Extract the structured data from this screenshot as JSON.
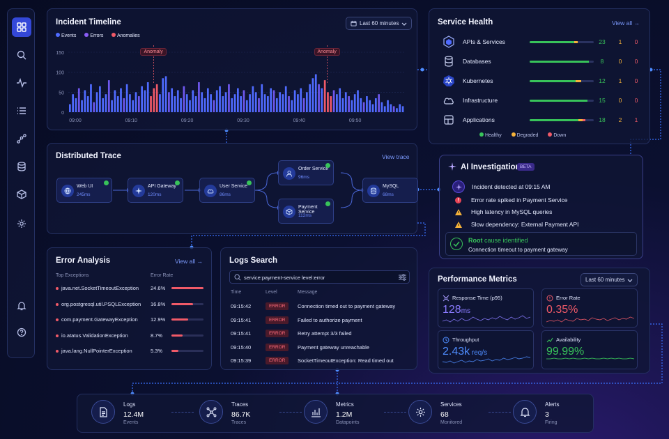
{
  "sidebar": {
    "items": [
      "dashboard-icon",
      "search-icon",
      "activity-icon",
      "list-icon",
      "graph-icon",
      "database-icon",
      "cube-icon",
      "settings-icon"
    ],
    "bottom": [
      "bell-icon",
      "help-icon"
    ]
  },
  "timeline": {
    "title": "Incident Timeline",
    "legend": [
      {
        "label": "Events",
        "color": "#4f6bff"
      },
      {
        "label": "Errors",
        "color": "#8a5cf6"
      },
      {
        "label": "Anomalies",
        "color": "#f05a68"
      }
    ],
    "range_label": "Last 60 minutes",
    "anomaly_label": "Anomaly"
  },
  "chart_data": {
    "type": "bar",
    "title": "Incident Timeline",
    "x_ticks": [
      "09:00",
      "09:10",
      "09:20",
      "09:30",
      "09:40",
      "09:50"
    ],
    "y_ticks": [
      "150",
      "100",
      "50",
      "0"
    ],
    "ylim": [
      0,
      150
    ],
    "grid": true,
    "anomalies": [
      "09:14",
      "09:45"
    ],
    "values": [
      20,
      45,
      35,
      60,
      30,
      55,
      40,
      70,
      25,
      50,
      65,
      35,
      45,
      80,
      30,
      55,
      40,
      60,
      35,
      70,
      45,
      30,
      50,
      40,
      65,
      55,
      75,
      40,
      60,
      70,
      45,
      85,
      90,
      50,
      60,
      40,
      55,
      35,
      65,
      45,
      30,
      55,
      40,
      75,
      50,
      35,
      60,
      45,
      30,
      55,
      65,
      40,
      50,
      70,
      35,
      45,
      60,
      40,
      55,
      30,
      45,
      65,
      50,
      35,
      70,
      45,
      40,
      60,
      55,
      35,
      50,
      45,
      65,
      40,
      30,
      55,
      45,
      60,
      35,
      50,
      70,
      85,
      95,
      70,
      60,
      80,
      50,
      40,
      55,
      45,
      60,
      35,
      50,
      40,
      30,
      45,
      55,
      35,
      25,
      40,
      30,
      20,
      35,
      45,
      25,
      15,
      30,
      20,
      15,
      10,
      20,
      15
    ]
  },
  "health": {
    "title": "Service Health",
    "view_all": "View all",
    "rows": [
      {
        "name": "APIs & Services",
        "icon": "hexagon-icon",
        "green": 0.7,
        "amber": 0.05,
        "red": 0.0,
        "ok": "23",
        "warn": "1",
        "down": "0"
      },
      {
        "name": "Databases",
        "icon": "database-icon",
        "green": 0.92,
        "amber": 0.0,
        "red": 0.0,
        "ok": "8",
        "warn": "0",
        "down": "0"
      },
      {
        "name": "Kubernetes",
        "icon": "kubernetes-icon",
        "green": 0.72,
        "amber": 0.08,
        "red": 0.0,
        "ok": "12",
        "warn": "1",
        "down": "0"
      },
      {
        "name": "Infrastructure",
        "icon": "cloud-icon",
        "green": 0.9,
        "amber": 0.0,
        "red": 0.0,
        "ok": "15",
        "warn": "0",
        "down": "0"
      },
      {
        "name": "Applications",
        "icon": "layers-icon",
        "green": 0.76,
        "amber": 0.07,
        "red": 0.04,
        "ok": "18",
        "warn": "2",
        "down": "1"
      }
    ],
    "legend": [
      {
        "label": "Healthy",
        "color": "#38c35a"
      },
      {
        "label": "Degraded",
        "color": "#f5b23a"
      },
      {
        "label": "Down",
        "color": "#f05a68"
      }
    ]
  },
  "trace": {
    "title": "Distributed Trace",
    "view": "View trace",
    "nodes": [
      {
        "name": "Web UI",
        "ms": "245ms",
        "icon": "globe-icon"
      },
      {
        "name": "API Gateway",
        "ms": "120ms",
        "icon": "api-icon"
      },
      {
        "name": "User Service",
        "ms": "86ms",
        "icon": "cloud-icon"
      },
      {
        "name": "Order Service",
        "ms": "96ms",
        "icon": "person-icon"
      },
      {
        "name": "Payment Service",
        "ms": "112ms",
        "icon": "cube-icon"
      },
      {
        "name": "MySQL",
        "ms": "68ms",
        "icon": "database-icon"
      }
    ]
  },
  "ai": {
    "title": "AI Investigation",
    "beta": "BETA",
    "detected": "Incident detected at 09:15 AM",
    "findings": [
      {
        "text": "Error rate spiked in Payment Service",
        "level": "error"
      },
      {
        "text": "High latency in MySQL queries",
        "level": "warn"
      },
      {
        "text": "Slow dependency: External Payment API",
        "level": "warn"
      }
    ],
    "root_title_a": "Root",
    "root_title_b": "cause identified",
    "root_desc": "Connection timeout to payment gateway"
  },
  "errors": {
    "title": "Error Analysis",
    "view_all": "View all",
    "col1": "Top Exceptions",
    "col2": "Error Rate",
    "rows": [
      {
        "name": "java.net.SocketTimeoutException",
        "rate": "24.6%",
        "frac": 1.0
      },
      {
        "name": "org.postgresql.util.PSQLException",
        "rate": "16.8%",
        "frac": 0.68
      },
      {
        "name": "com.payment.GatewayException",
        "rate": "12.9%",
        "frac": 0.52
      },
      {
        "name": "io.atatus.ValidationException",
        "rate": "8.7%",
        "frac": 0.35
      },
      {
        "name": "java.lang.NullPointerException",
        "rate": "5.3%",
        "frac": 0.22
      }
    ]
  },
  "logs": {
    "title": "Logs Search",
    "query": "service:payment-service level:error",
    "cols": [
      "Time",
      "Level",
      "Message"
    ],
    "rows": [
      {
        "time": "09:15:42",
        "level": "ERROR",
        "msg": "Connection timed out to payment gateway"
      },
      {
        "time": "09:15:41",
        "level": "ERROR",
        "msg": "Failed to authorize payment"
      },
      {
        "time": "09:15:41",
        "level": "ERROR",
        "msg": "Retry attempt 3/3 failed"
      },
      {
        "time": "09:15:40",
        "level": "ERROR",
        "msg": "Payment gateway unreachable"
      },
      {
        "time": "09:15:39",
        "level": "ERROR",
        "msg": "SocketTimeoutException: Read timed out"
      }
    ]
  },
  "perf": {
    "title": "Performance Metrics",
    "range_label": "Last 60 minutes",
    "cards": [
      {
        "label": "Response Time (p95)",
        "value": "128",
        "unit": "ms",
        "color": "#8a7bff"
      },
      {
        "label": "Error Rate",
        "value": "0.35%",
        "unit": "",
        "color": "#f05a68"
      },
      {
        "label": "Throughput",
        "value": "2.43k",
        "unit": " req/s",
        "color": "#4f8dff"
      },
      {
        "label": "Availability",
        "value": "99.99%",
        "unit": "",
        "color": "#38c35a"
      }
    ]
  },
  "bottom": [
    {
      "label": "Logs",
      "value": "12.4M",
      "sub": "Events",
      "icon": "document-icon"
    },
    {
      "label": "Traces",
      "value": "86.7K",
      "sub": "Traces",
      "icon": "network-icon"
    },
    {
      "label": "Metrics",
      "value": "1.2M",
      "sub": "Datapoints",
      "icon": "bar-chart-icon"
    },
    {
      "label": "Services",
      "value": "68",
      "sub": "Monitored",
      "icon": "gear-icon"
    },
    {
      "label": "Alerts",
      "value": "3",
      "sub": "Firing",
      "icon": "bell-icon"
    }
  ]
}
